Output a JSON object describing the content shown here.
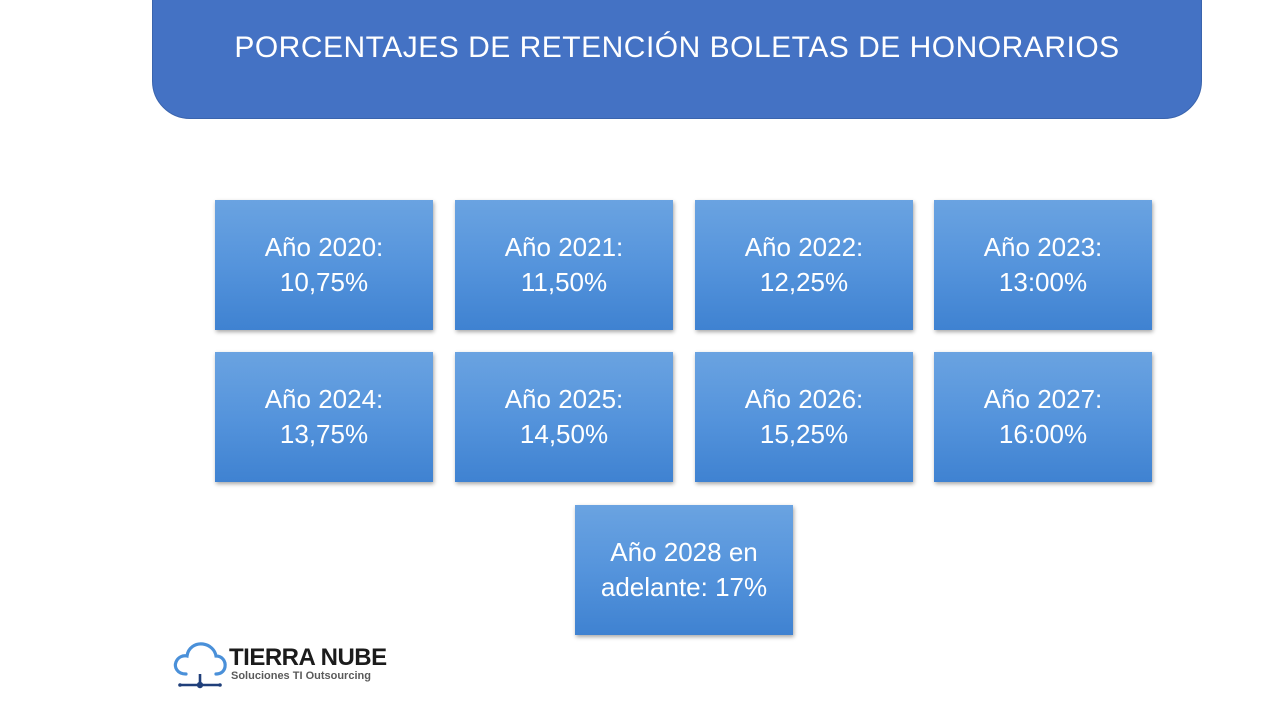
{
  "header": {
    "title": "PORCENTAJES DE RETENCIÓN BOLETAS DE HONORARIOS"
  },
  "tiles": [
    {
      "line1": "Año 2020:",
      "line2": "10,75%"
    },
    {
      "line1": "Año 2021:",
      "line2": "11,50%"
    },
    {
      "line1": "Año 2022:",
      "line2": "12,25%"
    },
    {
      "line1": "Año 2023:",
      "line2": "13:00%"
    },
    {
      "line1": "Año 2024:",
      "line2": "13,75%"
    },
    {
      "line1": "Año 2025:",
      "line2": "14,50%"
    },
    {
      "line1": "Año 2026:",
      "line2": "15,25%"
    },
    {
      "line1": "Año 2027:",
      "line2": "16:00%"
    },
    {
      "line1": "Año 2028 en",
      "line2": "adelante: 17%"
    }
  ],
  "logo": {
    "name": "TIERRA NUBE",
    "tagline": "Soluciones TI Outsourcing",
    "icon": "cloud-network-icon"
  },
  "colors": {
    "banner": "#4472c4",
    "tile": "#5594dc"
  }
}
